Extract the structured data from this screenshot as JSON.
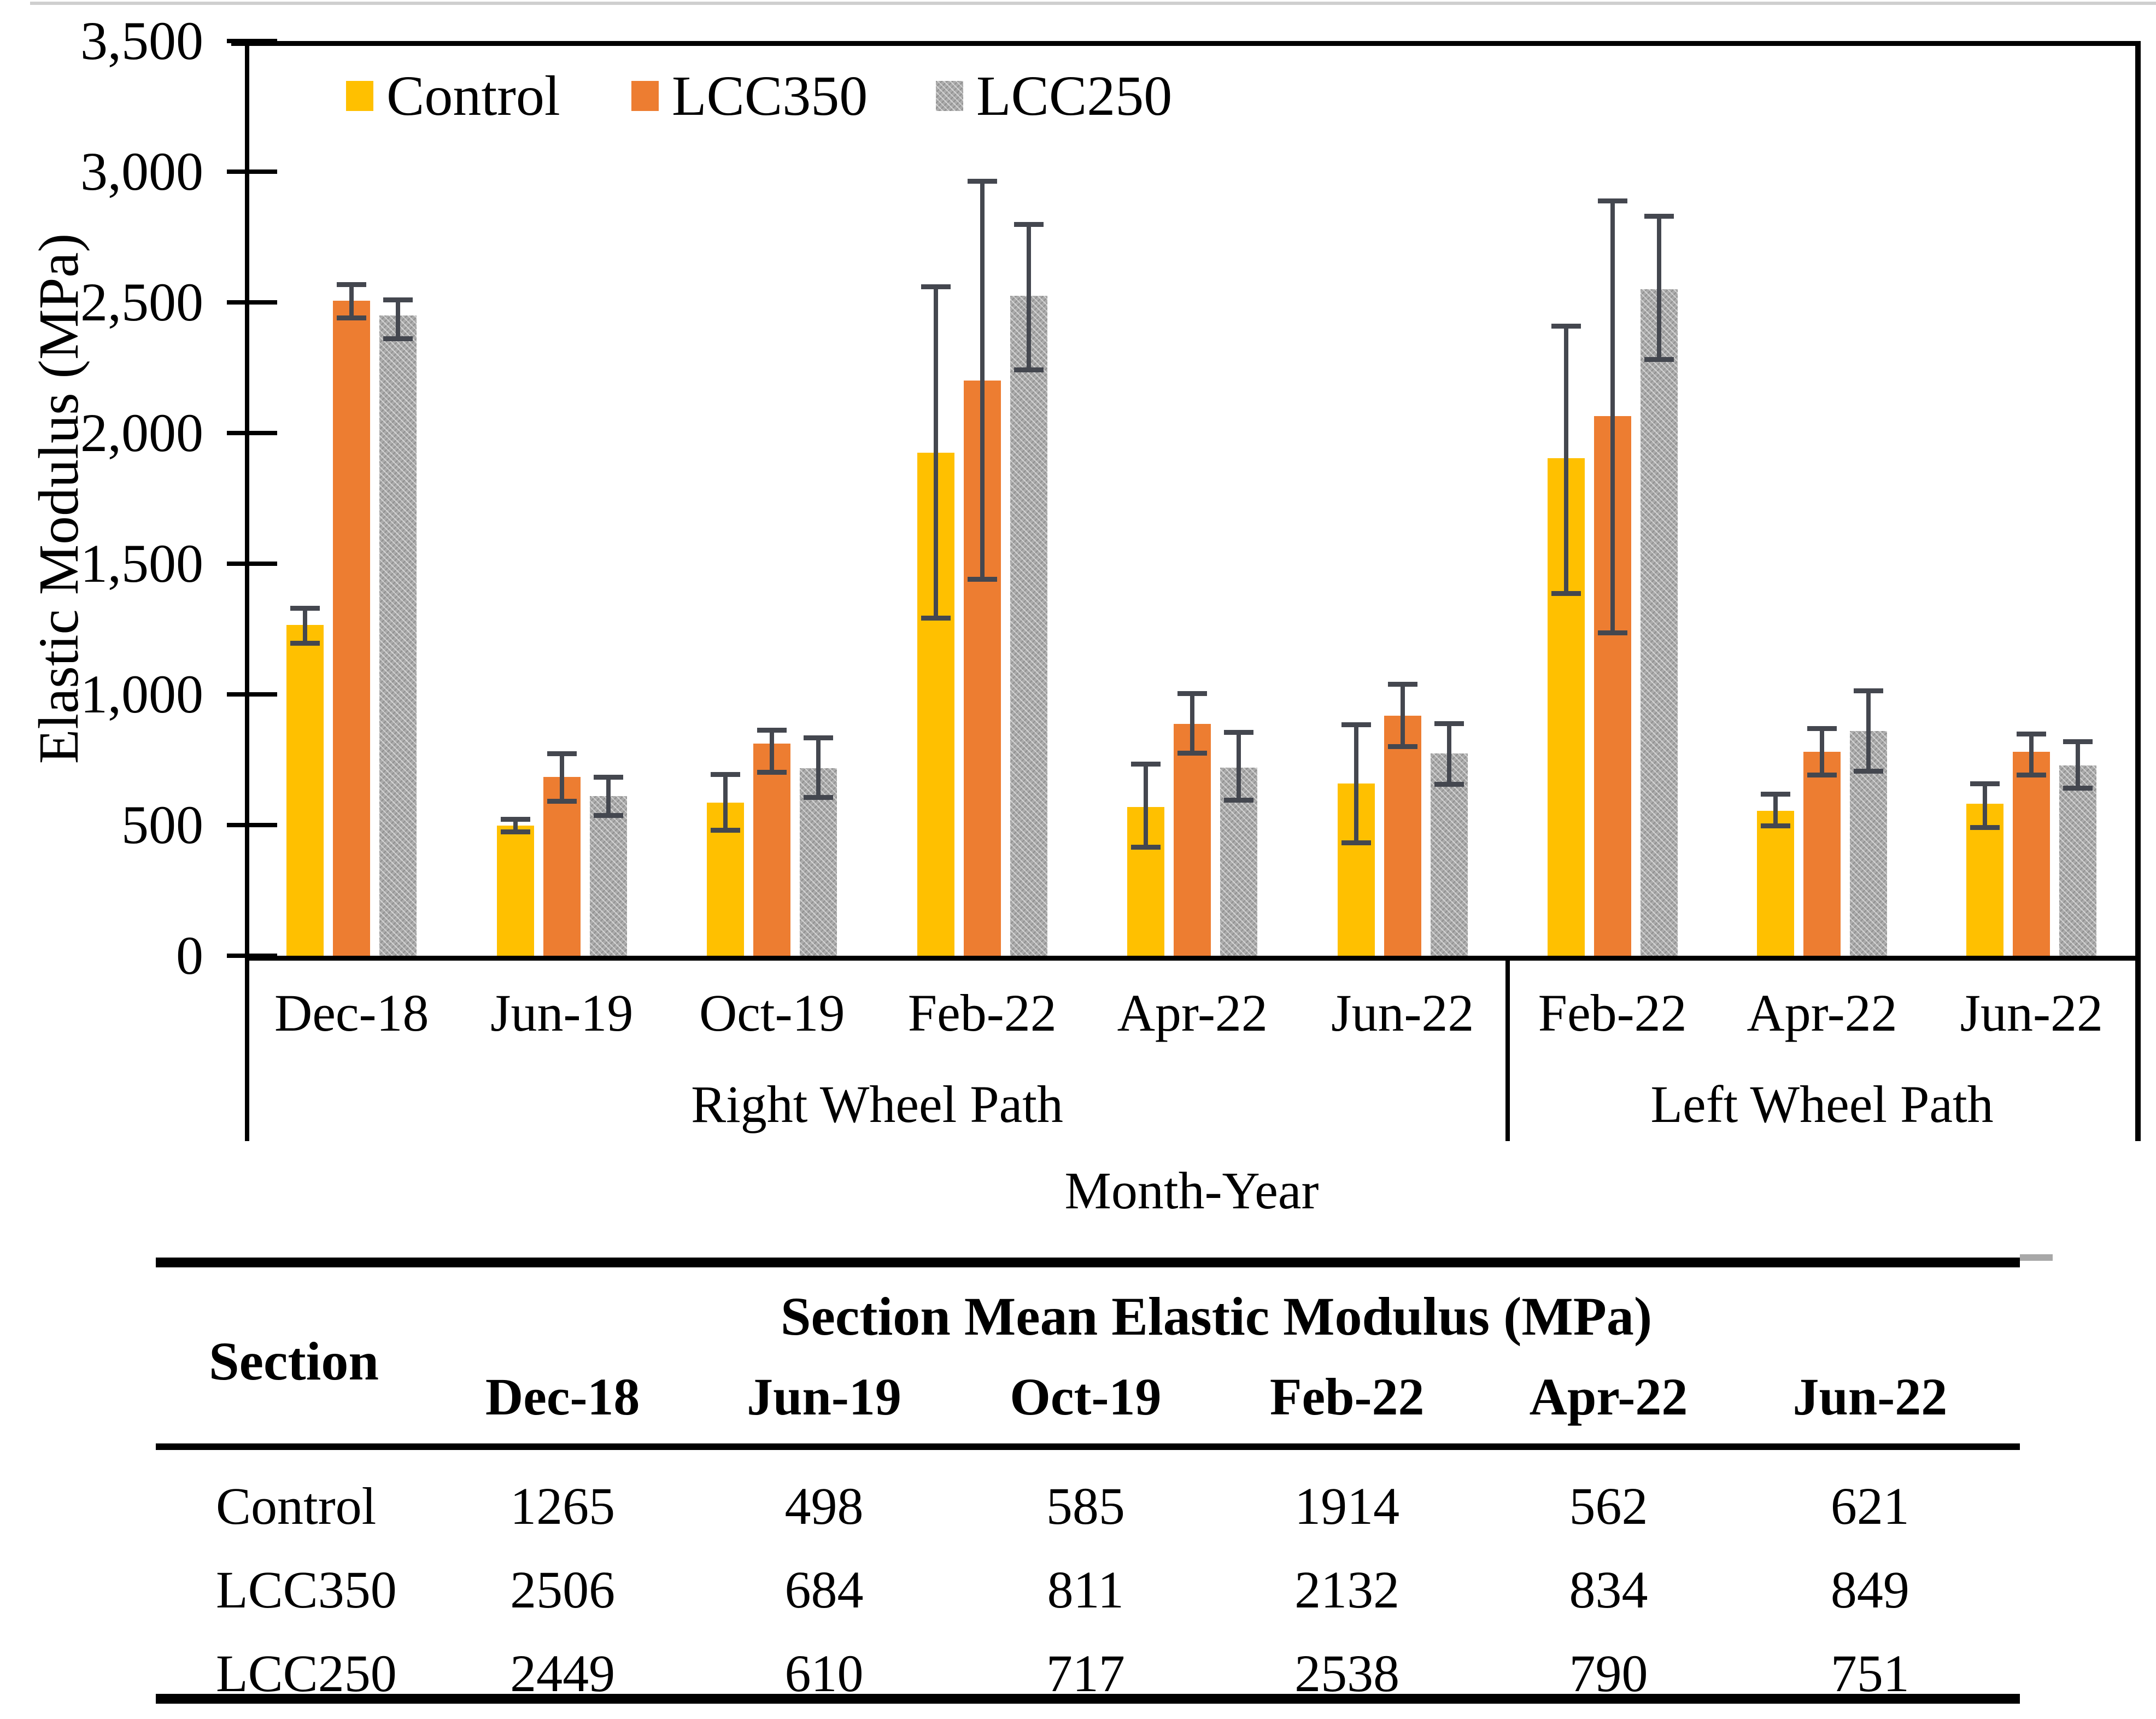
{
  "figure": {
    "y_tick_labels": [
      "0",
      "500",
      "1,000",
      "1,500",
      "2,000",
      "2,500",
      "3,000",
      "3,500"
    ]
  },
  "chart_data": {
    "type": "bar",
    "title": "",
    "ylabel": "Elastic Modulus (MPa)",
    "xlabel": "Month-Year",
    "ylim": [
      0,
      3500
    ],
    "y_tick_step": 500,
    "grid": false,
    "legend_position": "top-left-inside",
    "error_bars": true,
    "series_order": [
      "Control",
      "LCC350",
      "LCC250"
    ],
    "series_colors": {
      "Control": "#FFC000",
      "LCC350": "#ED7D31",
      "LCC250": "#A6A6A6"
    },
    "series_pattern": {
      "Control": false,
      "LCC350": false,
      "LCC250": true
    },
    "sections": [
      {
        "label": "Right Wheel Path",
        "categories": [
          "Dec-18",
          "Jun-19",
          "Oct-19",
          "Feb-22",
          "Apr-22",
          "Jun-22"
        ],
        "series": [
          {
            "name": "Control",
            "values": [
              1265,
              498,
              585,
              1925,
              570,
              660
            ],
            "err_low": [
              1195,
              472,
              480,
              1290,
              415,
              430
            ],
            "err_high": [
              1330,
              522,
              695,
              2560,
              735,
              885
            ]
          },
          {
            "name": "LCC350",
            "values": [
              2506,
              684,
              811,
              2200,
              888,
              918
            ],
            "err_low": [
              2440,
              590,
              700,
              1440,
              775,
              800
            ],
            "err_high": [
              2570,
              775,
              865,
              2965,
              1005,
              1040
            ]
          },
          {
            "name": "LCC250",
            "values": [
              2449,
              610,
              717,
              2525,
              720,
              775
            ],
            "err_low": [
              2360,
              535,
              605,
              2240,
              595,
              655
            ],
            "err_high": [
              2510,
              685,
              835,
              2800,
              855,
              890
            ]
          }
        ]
      },
      {
        "label": "Left Wheel Path",
        "categories": [
          "Feb-22",
          "Apr-22",
          "Jun-22"
        ],
        "series": [
          {
            "name": "Control",
            "values": [
              1903,
              554,
              582
            ],
            "err_low": [
              1385,
              495,
              490
            ],
            "err_high": [
              2410,
              620,
              660
            ]
          },
          {
            "name": "LCC350",
            "values": [
              2064,
              780,
              780
            ],
            "err_low": [
              1235,
              690,
              690
            ],
            "err_high": [
              2890,
              870,
              850
            ]
          },
          {
            "name": "LCC250",
            "values": [
              2551,
              860,
              727
            ],
            "err_low": [
              2280,
              705,
              640
            ],
            "err_high": [
              2830,
              1015,
              820
            ]
          }
        ]
      }
    ],
    "legend": [
      {
        "label": "Control",
        "color": "#FFC000",
        "pattern": false
      },
      {
        "label": "LCC350",
        "color": "#ED7D31",
        "pattern": false
      },
      {
        "label": "LCC250",
        "color": "#A6A6A6",
        "pattern": true
      }
    ]
  },
  "table": {
    "col_group_header": "Section Mean Elastic Modulus (MPa)",
    "row_header": "Section",
    "columns": [
      "Dec-18",
      "Jun-19",
      "Oct-19",
      "Feb-22",
      "Apr-22",
      "Jun-22"
    ],
    "rows": [
      {
        "section": "Control",
        "values": [
          "1265",
          "498",
          "585",
          "1914",
          "562",
          "621"
        ]
      },
      {
        "section": "LCC350",
        "values": [
          "2506",
          "684",
          "811",
          "2132",
          "834",
          "849"
        ]
      },
      {
        "section": "LCC250",
        "values": [
          "2449",
          "610",
          "717",
          "2538",
          "790",
          "751"
        ]
      }
    ]
  }
}
